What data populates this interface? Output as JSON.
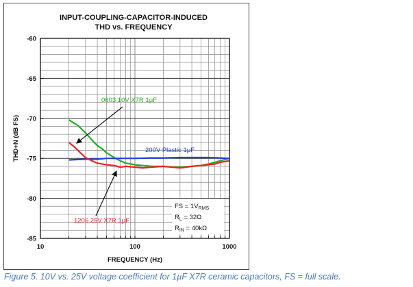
{
  "chart_data": {
    "type": "line",
    "title": [
      "INPUT-COUPLING-CAPACITOR-INDUCED",
      "THD vs. FREQUENCY"
    ],
    "xlabel": "FREQUENCY (Hz)",
    "ylabel": "THD+N (dB FS)",
    "xscale": "log",
    "xlim": [
      10,
      1000
    ],
    "ylim": [
      -85,
      -60
    ],
    "grid": true,
    "xticks": [
      {
        "value": 10,
        "label": "10"
      },
      {
        "value": 100,
        "label": "100"
      },
      {
        "value": 1000,
        "label": "1000"
      }
    ],
    "yticks": [
      {
        "value": -60,
        "label": "-60"
      },
      {
        "value": -65,
        "label": "-65"
      },
      {
        "value": -70,
        "label": "-70"
      },
      {
        "value": -75,
        "label": "-75"
      },
      {
        "value": -80,
        "label": "-80"
      },
      {
        "value": -85,
        "label": "-85"
      }
    ],
    "series": [
      {
        "name": "0603 10V X7R 1µF",
        "label_text": "0603 10V X7R 1μF",
        "color": "#22aa22",
        "x": [
          20,
          25,
          30,
          35,
          40,
          45,
          50,
          60,
          70,
          80,
          100,
          120,
          150,
          200,
          250,
          300,
          400,
          500,
          600,
          700,
          800,
          1000
        ],
        "y": [
          -70.2,
          -70.9,
          -71.8,
          -72.7,
          -73.4,
          -73.8,
          -74.3,
          -74.9,
          -75.3,
          -75.6,
          -75.8,
          -75.9,
          -76.0,
          -76.0,
          -76.1,
          -76.1,
          -76.0,
          -75.9,
          -75.7,
          -75.5,
          -75.3,
          -75.0
        ]
      },
      {
        "name": "200V Plastic 1µF",
        "label_text": "200V Plastic 1μF",
        "color": "#1f3fe0",
        "x": [
          20,
          30,
          40,
          50,
          60,
          80,
          100,
          150,
          200,
          300,
          400,
          500,
          600,
          800,
          1000
        ],
        "y": [
          -75.2,
          -75.1,
          -75.1,
          -75.0,
          -75.0,
          -75.0,
          -75.0,
          -74.95,
          -74.95,
          -74.9,
          -74.9,
          -74.9,
          -74.9,
          -74.95,
          -75.0
        ]
      },
      {
        "name": "1206 25V X7R 1µF",
        "label_text": "1206 25V X7R 1μF",
        "color": "#ee2222",
        "x": [
          20,
          23,
          26,
          30,
          35,
          40,
          45,
          50,
          60,
          70,
          80,
          100,
          120,
          150,
          200,
          250,
          300,
          400,
          500,
          600,
          700,
          800,
          1000
        ],
        "y": [
          -73.0,
          -73.6,
          -74.2,
          -74.9,
          -75.3,
          -75.6,
          -75.7,
          -75.8,
          -75.9,
          -76.1,
          -76.0,
          -76.1,
          -76.2,
          -76.1,
          -76.0,
          -76.1,
          -76.2,
          -76.0,
          -75.9,
          -75.8,
          -75.7,
          -75.5,
          -75.3
        ]
      }
    ],
    "annotations": [
      {
        "series": 0,
        "text": "0603 10V X7R 1μF",
        "arrow_to": [
          40,
          -73.4
        ]
      },
      {
        "series": 1,
        "text": "200V Plastic 1μF"
      },
      {
        "series": 2,
        "text": "1206 25V X7R 1μF",
        "arrow_to": [
          80,
          -76.0
        ]
      }
    ],
    "info_box": [
      "FS = 1V",
      "RMS",
      "R",
      "L",
      " = 32Ω",
      "R",
      "IN",
      " = 40kΩ"
    ]
  },
  "caption": "Figure 5. 10V vs. 25V voltage coefficient for 1µF X7R ceramic capacitors, FS = full scale."
}
